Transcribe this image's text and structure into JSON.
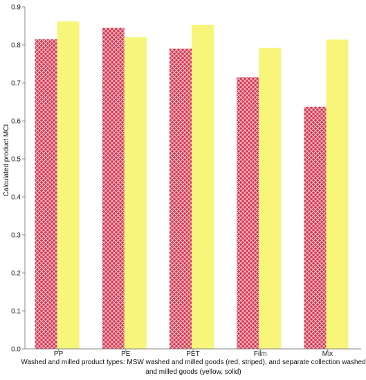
{
  "chart_data": {
    "type": "bar",
    "categories": [
      "PP",
      "PE",
      "PET",
      "Film",
      "Mix"
    ],
    "series": [
      {
        "values": [
          0.815,
          0.845,
          0.79,
          0.715,
          0.637
        ],
        "color": "#d8344e",
        "pattern": "striped"
      },
      {
        "values": [
          0.862,
          0.82,
          0.853,
          0.792,
          0.814
        ],
        "color": "#f7f57a",
        "pattern": "solid"
      }
    ],
    "ylabel": "Calculated product MCI",
    "xlabel": "Washed and milled product types: MSW washed and milled goods (red, striped), and separate collection washed and milled goods (yellow, solid)",
    "ylim": [
      0,
      0.9
    ],
    "yticks": [
      0,
      0.1,
      0.2,
      0.3,
      0.4,
      0.5,
      0.6,
      0.7,
      0.8,
      0.9
    ],
    "grid": false,
    "legend": "none"
  }
}
